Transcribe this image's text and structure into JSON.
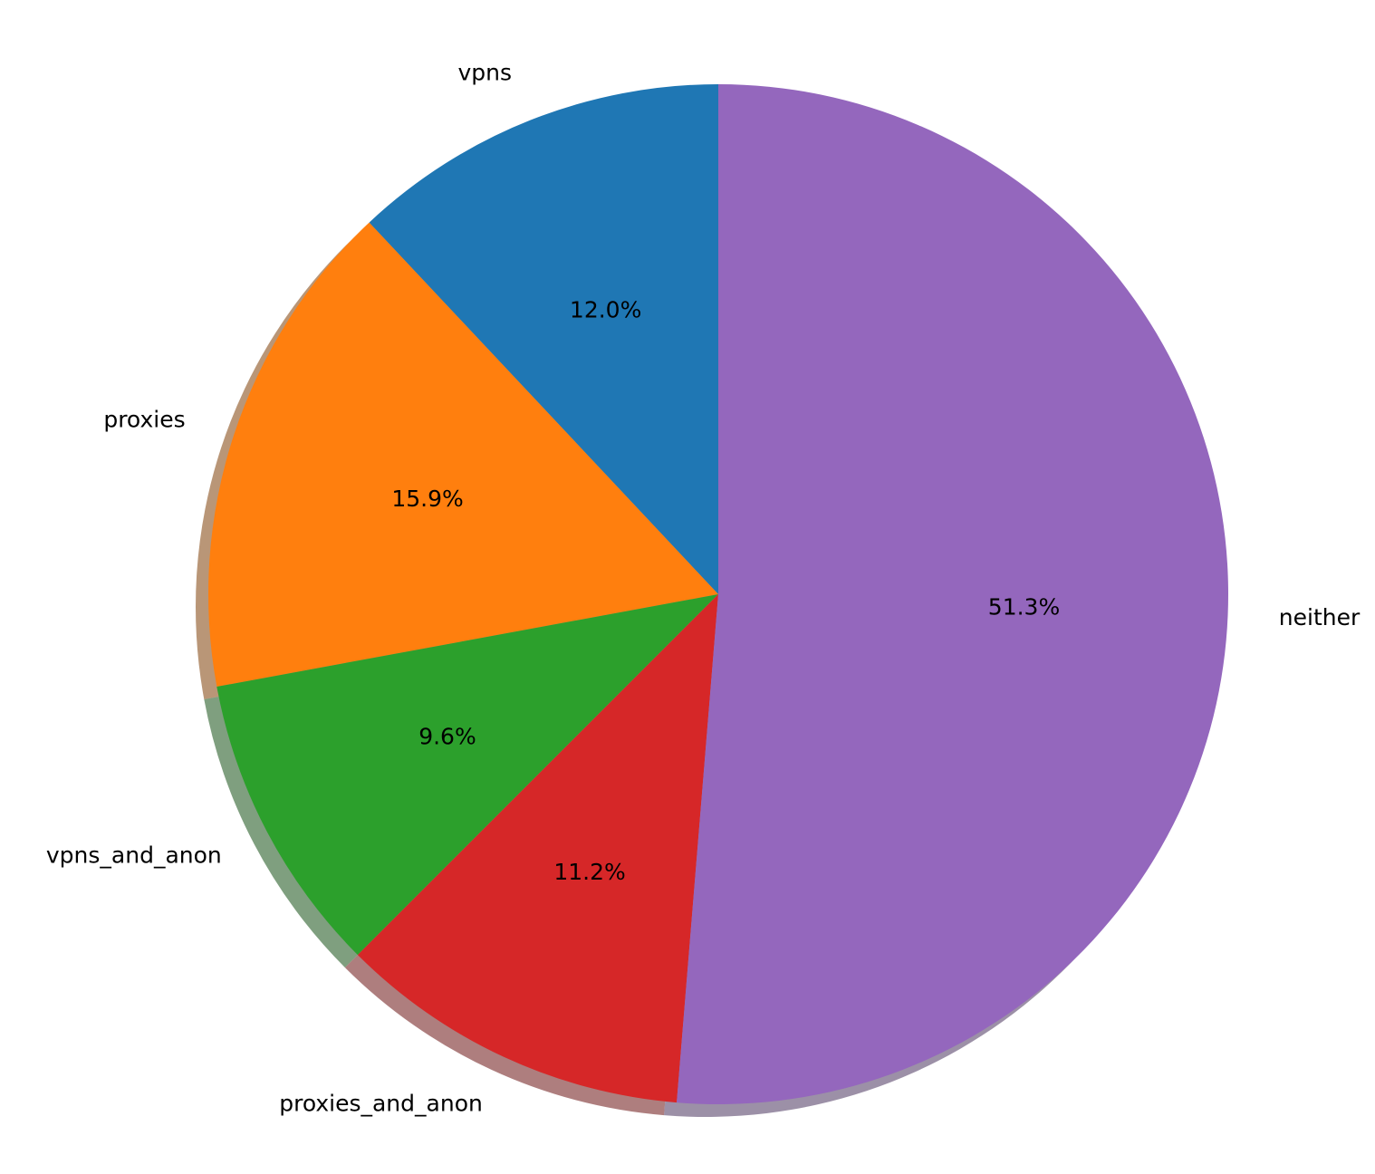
{
  "chart_data": {
    "type": "pie",
    "title": "",
    "start_angle_deg": 90,
    "direction": "counterclockwise",
    "shadow": true,
    "slices": [
      {
        "label": "vpns",
        "value": 12.0,
        "pct_label": "12.0%",
        "color": "#1f77b4"
      },
      {
        "label": "proxies",
        "value": 15.9,
        "pct_label": "15.9%",
        "color": "#ff7f0e"
      },
      {
        "label": "vpns_and_anon",
        "value": 9.6,
        "pct_label": "9.6%",
        "color": "#2ca02c"
      },
      {
        "label": "proxies_and_anon",
        "value": 11.2,
        "pct_label": "11.2%",
        "color": "#d62728"
      },
      {
        "label": "neither",
        "value": 51.3,
        "pct_label": "51.3%",
        "color": "#9467bd"
      }
    ]
  }
}
